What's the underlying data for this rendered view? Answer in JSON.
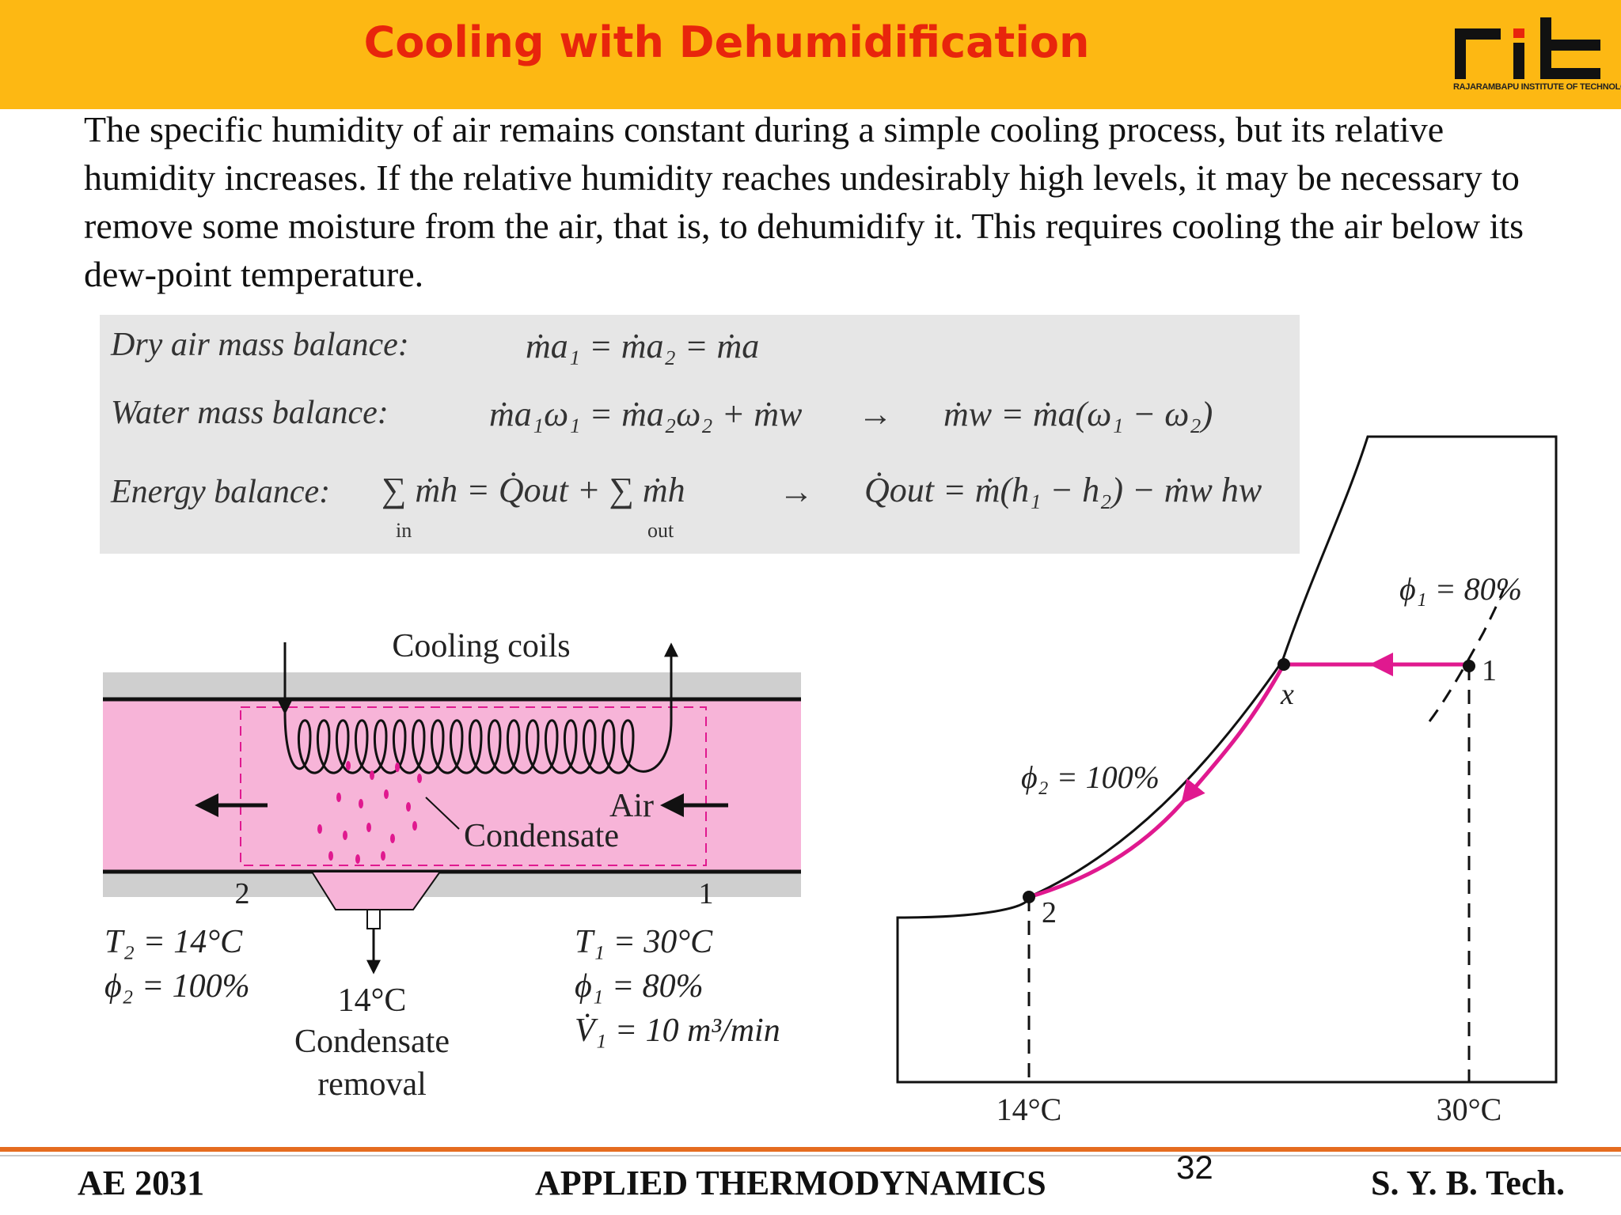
{
  "header": {
    "title": "Cooling with Dehumidification",
    "logo_text": "rit",
    "logo_caption": "RAJARAMBAPU INSTITUTE OF TECHNOLOGY"
  },
  "intro": "The specific humidity of air remains constant during a simple cooling process, but its relative humidity increases. If the relative humidity reaches undesirably high levels, it may be necessary to remove some moisture from the air, that is, to dehumidify it. This requires cooling the air below its dew-point temperature.",
  "equations": {
    "dry_air": {
      "label": "Dry air mass balance:",
      "expr": "ṁa₁ = ṁa₂ = ṁa"
    },
    "water": {
      "label": "Water mass balance:",
      "expr_left": "ṁa₁ω₁ = ṁa₂ω₂ + ṁw",
      "arrow": "→",
      "expr_right": "ṁw = ṁa(ω₁ − ω₂)"
    },
    "energy": {
      "label": "Energy balance:",
      "expr_left": "∑ ṁh = Q̇out + ∑ ṁh",
      "sub_in": "in",
      "sub_out": "out",
      "arrow": "→",
      "expr_right": "Q̇out = ṁ(h₁ − h₂) − ṁw hw"
    }
  },
  "device": {
    "coils_label": "Cooling coils",
    "air_label": "Air",
    "condensate_label": "Condensate",
    "state2": "2",
    "state1": "1",
    "exit_T": "T₂ = 14°C",
    "exit_phi": "ϕ₂ = 100%",
    "drain_temp": "14°C",
    "drain_line1": "Condensate",
    "drain_line2": "removal",
    "inlet_T": "T₁ = 30°C",
    "inlet_phi": "ϕ₁ = 80%",
    "inlet_V": "V̇₁ = 10 m³/min"
  },
  "chart": {
    "phi1_label": "ϕ₁ = 80%",
    "phi2_label": "ϕ₂ = 100%",
    "point1": "1",
    "point_x": "x",
    "point2": "2",
    "temp_left": "14°C",
    "temp_right": "30°C",
    "process_color": "#e0198f"
  },
  "footer": {
    "course_code": "AE 2031",
    "course_title": "APPLIED THERMODYNAMICS",
    "page_number": "32",
    "class_name": "S. Y. B. Tech."
  },
  "colors": {
    "header_bg": "#fdb813",
    "title_color": "#e8250c",
    "duct_pink": "#f7b4d8",
    "footer_rule": "#e56c1f"
  }
}
